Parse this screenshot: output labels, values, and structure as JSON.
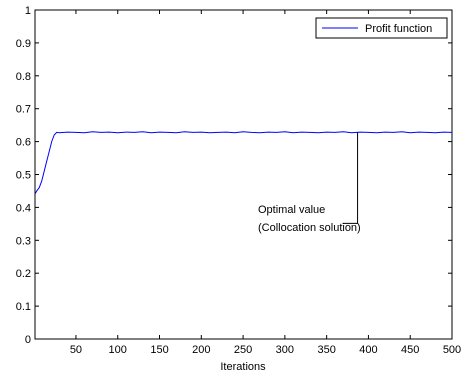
{
  "chart_data": {
    "type": "line",
    "title": "",
    "xlabel": "Iterations",
    "ylabel": "",
    "xlim": [
      1,
      500
    ],
    "ylim": [
      0,
      1
    ],
    "x_ticks": [
      50,
      100,
      150,
      200,
      250,
      300,
      350,
      400,
      450,
      500
    ],
    "x_tick_labels": [
      "50",
      "100",
      "150",
      "200",
      "250",
      "300",
      "350",
      "400",
      "450",
      "500"
    ],
    "y_ticks": [
      0,
      0.1,
      0.2,
      0.3,
      0.4,
      0.5,
      0.6,
      0.7,
      0.8,
      0.9,
      1
    ],
    "y_tick_labels": [
      "0",
      "0.1",
      "0.2",
      "0.3",
      "0.4",
      "0.5",
      "0.6",
      "0.7",
      "0.8",
      "0.9",
      "1"
    ],
    "grid": false,
    "legend_position": "top-right",
    "series": [
      {
        "name": "Profit function",
        "color": "#0000ff",
        "x": [
          1,
          3,
          6,
          9,
          12,
          15,
          18,
          21,
          24,
          27,
          30,
          40,
          50,
          60,
          70,
          80,
          90,
          100,
          110,
          120,
          130,
          140,
          150,
          160,
          170,
          180,
          190,
          200,
          210,
          220,
          230,
          240,
          250,
          260,
          270,
          280,
          290,
          300,
          310,
          320,
          330,
          340,
          350,
          360,
          370,
          380,
          390,
          400,
          410,
          420,
          430,
          440,
          450,
          460,
          470,
          480,
          490,
          500
        ],
        "y": [
          0.44,
          0.45,
          0.46,
          0.48,
          0.51,
          0.54,
          0.57,
          0.6,
          0.62,
          0.628,
          0.627,
          0.629,
          0.628,
          0.627,
          0.63,
          0.628,
          0.629,
          0.627,
          0.629,
          0.628,
          0.63,
          0.627,
          0.629,
          0.628,
          0.627,
          0.63,
          0.628,
          0.629,
          0.627,
          0.628,
          0.629,
          0.627,
          0.63,
          0.628,
          0.627,
          0.629,
          0.628,
          0.63,
          0.627,
          0.629,
          0.628,
          0.627,
          0.629,
          0.628,
          0.63,
          0.627,
          0.629,
          0.628,
          0.627,
          0.629,
          0.628,
          0.63,
          0.627,
          0.629,
          0.628,
          0.627,
          0.629,
          0.628
        ]
      }
    ],
    "annotations": [
      {
        "lines": [
          "Optimal value",
          "(Collocation solution)"
        ],
        "point_x": 387,
        "point_y": 0.628,
        "elbow_y": 0.33
      }
    ]
  }
}
